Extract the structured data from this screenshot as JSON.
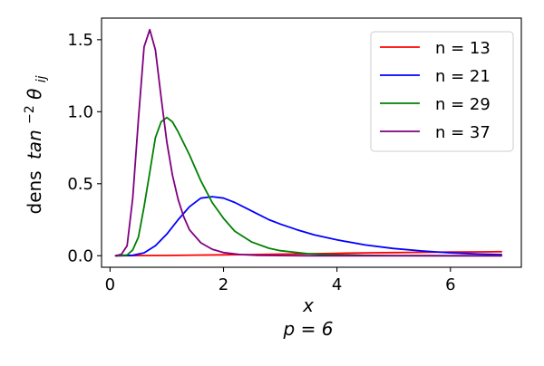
{
  "chart_data": {
    "type": "line",
    "ylabel": "dens",
    "ylabel_math": "tan",
    "ylabel_exponent": "−2",
    "ylabel_theta": "θ",
    "ylabel_subscript": "ij",
    "xlabel": "x",
    "subtitle": "p = 6",
    "xlim": [
      -0.15,
      7.25
    ],
    "ylim": [
      -0.08,
      1.65
    ],
    "xticks": [
      0,
      2,
      4,
      6
    ],
    "xtick_labels": [
      "0",
      "2",
      "4",
      "6"
    ],
    "yticks": [
      0.0,
      0.5,
      1.0,
      1.5
    ],
    "ytick_labels": [
      "0.0",
      "0.5",
      "1.0",
      "1.5"
    ],
    "grid": false,
    "legend_position": "top-right",
    "series": [
      {
        "name": "n = 13",
        "color": "#ff0000",
        "x": [
          0.1,
          0.5,
          1.0,
          1.5,
          2.0,
          2.5,
          3.0,
          3.5,
          4.0,
          4.5,
          5.0,
          5.5,
          6.0,
          6.5,
          6.9
        ],
        "y": [
          0.0,
          0.001,
          0.002,
          0.004,
          0.006,
          0.008,
          0.011,
          0.014,
          0.017,
          0.02,
          0.022,
          0.024,
          0.026,
          0.027,
          0.028
        ]
      },
      {
        "name": "n = 21",
        "color": "#0000ff",
        "x": [
          0.1,
          0.4,
          0.6,
          0.8,
          1.0,
          1.2,
          1.4,
          1.6,
          1.8,
          2.0,
          2.2,
          2.4,
          2.6,
          2.8,
          3.0,
          3.3,
          3.6,
          4.0,
          4.5,
          5.0,
          5.5,
          6.0,
          6.5,
          6.9
        ],
        "y": [
          0.0,
          0.003,
          0.02,
          0.07,
          0.15,
          0.25,
          0.34,
          0.4,
          0.41,
          0.4,
          0.37,
          0.33,
          0.29,
          0.25,
          0.22,
          0.18,
          0.145,
          0.11,
          0.075,
          0.05,
          0.033,
          0.02,
          0.012,
          0.008
        ]
      },
      {
        "name": "n = 29",
        "color": "#008000",
        "x": [
          0.1,
          0.3,
          0.4,
          0.5,
          0.6,
          0.7,
          0.8,
          0.9,
          1.0,
          1.1,
          1.2,
          1.4,
          1.6,
          1.8,
          2.0,
          2.2,
          2.5,
          2.8,
          3.0,
          3.5,
          4.0,
          4.5,
          5.0,
          5.5,
          6.0,
          6.9
        ],
        "y": [
          0.0,
          0.005,
          0.04,
          0.13,
          0.34,
          0.58,
          0.82,
          0.93,
          0.96,
          0.93,
          0.86,
          0.7,
          0.52,
          0.37,
          0.26,
          0.17,
          0.095,
          0.052,
          0.035,
          0.014,
          0.006,
          0.003,
          0.001,
          0.0005,
          0.0,
          0.0
        ]
      },
      {
        "name": "n = 37",
        "color": "#800080",
        "x": [
          0.1,
          0.2,
          0.3,
          0.4,
          0.5,
          0.6,
          0.7,
          0.8,
          0.9,
          1.0,
          1.1,
          1.2,
          1.3,
          1.4,
          1.6,
          1.8,
          2.0,
          2.3,
          2.6,
          3.0,
          3.5,
          4.0,
          5.0,
          6.0,
          6.9
        ],
        "y": [
          0.0,
          0.01,
          0.07,
          0.4,
          0.95,
          1.45,
          1.57,
          1.43,
          1.1,
          0.79,
          0.56,
          0.39,
          0.27,
          0.18,
          0.09,
          0.045,
          0.022,
          0.008,
          0.003,
          0.001,
          0.0,
          0.0,
          0.0,
          0.0,
          0.0
        ]
      }
    ]
  }
}
